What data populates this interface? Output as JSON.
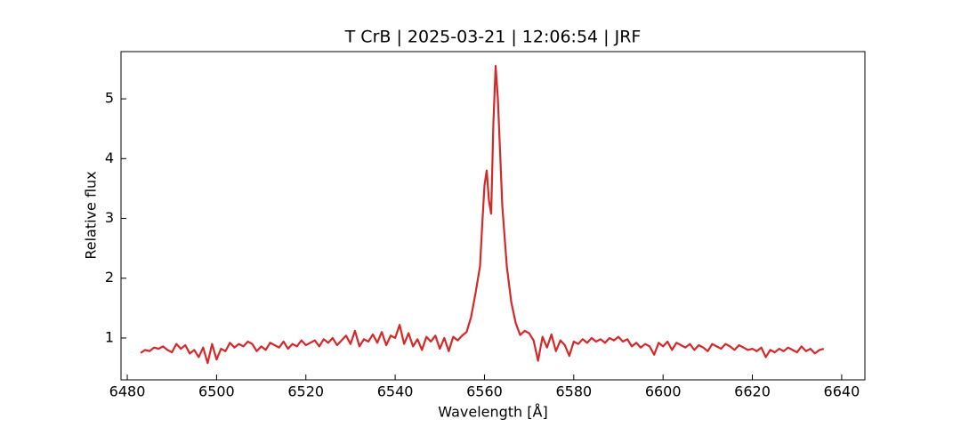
{
  "chart_data": {
    "type": "line",
    "title": "T CrB | 2025-03-21 | 12:06:54 | JRF",
    "x_label": "Wavelength [Å]",
    "y_label": "Relative flux",
    "xlim": [
      6478.6,
      6645.2
    ],
    "ylim": [
      0.3,
      5.79
    ],
    "xticks": [
      6480,
      6500,
      6520,
      6540,
      6560,
      6580,
      6600,
      6620,
      6640
    ],
    "yticks": [
      1,
      2,
      3,
      4,
      5
    ],
    "series": [
      {
        "color": "#d62728",
        "x": [
          6483,
          6484,
          6485,
          6486,
          6487,
          6488,
          6489,
          6490,
          6491,
          6492,
          6493,
          6494,
          6495,
          6496,
          6497,
          6498,
          6499,
          6500,
          6501,
          6502,
          6503,
          6504,
          6505,
          6506,
          6507,
          6508,
          6509,
          6510,
          6511,
          6512,
          6513,
          6514,
          6515,
          6516,
          6517,
          6518,
          6519,
          6520,
          6521,
          6522,
          6523,
          6524,
          6525,
          6526,
          6527,
          6528,
          6529,
          6530,
          6531,
          6532,
          6533,
          6534,
          6535,
          6536,
          6537,
          6538,
          6539,
          6540,
          6541,
          6542,
          6543,
          6544,
          6545,
          6546,
          6547,
          6548,
          6549,
          6550,
          6551,
          6552,
          6553,
          6554,
          6555,
          6556,
          6557,
          6558,
          6559,
          6559.5,
          6560,
          6560.5,
          6561,
          6561.5,
          6562,
          6562.5,
          6563,
          6563.5,
          6564,
          6565,
          6566,
          6567,
          6568,
          6569,
          6570,
          6571,
          6572,
          6573,
          6574,
          6575,
          6576,
          6577,
          6578,
          6579,
          6580,
          6581,
          6582,
          6583,
          6584,
          6585,
          6586,
          6587,
          6588,
          6589,
          6590,
          6591,
          6592,
          6593,
          6594,
          6595,
          6596,
          6597,
          6598,
          6599,
          6600,
          6601,
          6602,
          6603,
          6604,
          6605,
          6606,
          6607,
          6608,
          6609,
          6610,
          6611,
          6612,
          6613,
          6614,
          6615,
          6616,
          6617,
          6618,
          6619,
          6620,
          6621,
          6622,
          6623,
          6624,
          6625,
          6626,
          6627,
          6628,
          6629,
          6630,
          6631,
          6632,
          6633,
          6634,
          6635,
          6636
        ],
        "values": [
          0.75,
          0.8,
          0.78,
          0.84,
          0.82,
          0.86,
          0.8,
          0.76,
          0.9,
          0.82,
          0.88,
          0.74,
          0.8,
          0.68,
          0.84,
          0.58,
          0.9,
          0.64,
          0.82,
          0.78,
          0.92,
          0.84,
          0.9,
          0.86,
          0.94,
          0.9,
          0.78,
          0.86,
          0.8,
          0.92,
          0.88,
          0.84,
          0.94,
          0.82,
          0.9,
          0.86,
          0.96,
          0.88,
          0.92,
          0.96,
          0.86,
          0.98,
          0.92,
          1.0,
          0.88,
          0.96,
          1.04,
          0.9,
          1.12,
          0.86,
          0.98,
          0.94,
          1.06,
          0.92,
          1.1,
          0.88,
          1.04,
          1.0,
          1.22,
          0.9,
          1.08,
          0.86,
          0.98,
          0.8,
          1.02,
          0.94,
          1.04,
          0.82,
          1.0,
          0.78,
          1.02,
          0.96,
          1.04,
          1.1,
          1.35,
          1.75,
          2.2,
          2.9,
          3.55,
          3.8,
          3.3,
          3.08,
          4.6,
          5.55,
          5.0,
          4.1,
          3.2,
          2.2,
          1.6,
          1.25,
          1.05,
          1.12,
          1.08,
          0.96,
          0.62,
          1.02,
          0.84,
          1.06,
          0.78,
          0.96,
          0.88,
          0.7,
          0.94,
          0.9,
          0.98,
          0.92,
          1.0,
          0.94,
          0.98,
          0.92,
          1.0,
          0.96,
          1.02,
          0.94,
          0.98,
          0.86,
          0.92,
          0.84,
          0.9,
          0.86,
          0.72,
          0.92,
          0.86,
          0.94,
          0.8,
          0.92,
          0.88,
          0.84,
          0.9,
          0.8,
          0.88,
          0.84,
          0.78,
          0.9,
          0.86,
          0.82,
          0.9,
          0.86,
          0.8,
          0.88,
          0.84,
          0.8,
          0.82,
          0.78,
          0.84,
          0.68,
          0.8,
          0.76,
          0.82,
          0.78,
          0.84,
          0.8,
          0.76,
          0.86,
          0.78,
          0.82,
          0.74,
          0.8,
          0.82
        ]
      }
    ]
  }
}
